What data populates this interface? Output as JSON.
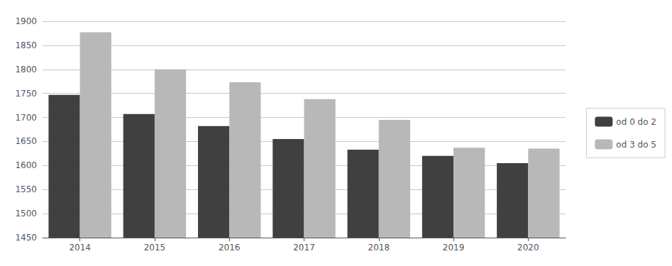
{
  "chart_data": {
    "type": "bar",
    "categories": [
      "2014",
      "2015",
      "2016",
      "2017",
      "2018",
      "2019",
      "2020"
    ],
    "series": [
      {
        "name": "od 0 do 2",
        "color": "#404040",
        "values": [
          1747,
          1707,
          1682,
          1655,
          1633,
          1620,
          1605
        ]
      },
      {
        "name": "od 3 do 5",
        "color": "#b8b8b8",
        "values": [
          1877,
          1800,
          1773,
          1738,
          1695,
          1637,
          1635
        ]
      }
    ],
    "ylim": [
      1450,
      1900
    ],
    "yticks": [
      1450,
      1500,
      1550,
      1600,
      1650,
      1700,
      1750,
      1800,
      1850,
      1900
    ],
    "grid": true,
    "legend": "right"
  }
}
